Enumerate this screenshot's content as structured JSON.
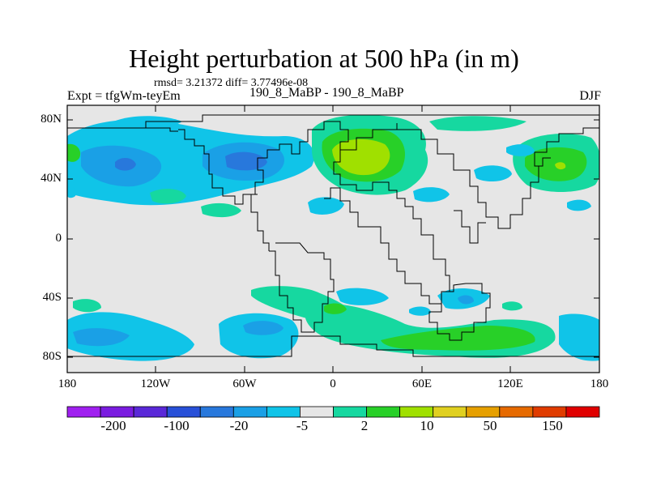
{
  "title": "Height perturbation at 500 hPa (in m)",
  "stats_line": "rmsd= 3.21372 diff= 3.77496e-08",
  "experiment_label": "Expt = tfgWm-teyEm",
  "run_label": "190_8_MaBP - 190_8_MaBP",
  "season": "DJF",
  "map": {
    "lat_axis_labels": [
      "80N",
      "40N",
      "0",
      "40S",
      "80S"
    ],
    "lon_axis_labels": [
      "180",
      "120W",
      "60W",
      "0",
      "60E",
      "120E",
      "180"
    ]
  },
  "colorbar": {
    "colors": [
      "#a020f0",
      "#7a1ce0",
      "#5a28d8",
      "#2850d8",
      "#2878dc",
      "#1aa0e6",
      "#10c4e8",
      "#e6e6e6",
      "#16d8a0",
      "#28d028",
      "#a0e000",
      "#e0d020",
      "#e6a000",
      "#e66a00",
      "#e03c00",
      "#e00000"
    ],
    "labels": [
      "-200",
      "-100",
      "-20",
      "-5",
      "2",
      "10",
      "50",
      "150"
    ]
  },
  "colors": {
    "background_field": "#e6e6e6",
    "frame": "#000000"
  }
}
